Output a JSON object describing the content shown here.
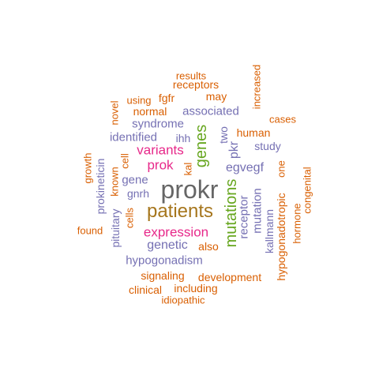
{
  "colors": {
    "orange": "#d95f02",
    "purple": "#7570b3",
    "magenta": "#e7298a",
    "green": "#66a61e",
    "olive": "#a6761d",
    "gray": "#666666"
  },
  "words": [
    {
      "text": "prokr",
      "color": "gray"
    },
    {
      "text": "patients",
      "color": "olive"
    },
    {
      "text": "mutations",
      "color": "green"
    },
    {
      "text": "genes",
      "color": "green"
    },
    {
      "text": "variants",
      "color": "magenta"
    },
    {
      "text": "expression",
      "color": "magenta"
    },
    {
      "text": "prok",
      "color": "magenta"
    },
    {
      "text": "egvegf",
      "color": "purple"
    },
    {
      "text": "pkr",
      "color": "purple"
    },
    {
      "text": "genetic",
      "color": "purple"
    },
    {
      "text": "hypogonadism",
      "color": "purple"
    },
    {
      "text": "syndrome",
      "color": "purple"
    },
    {
      "text": "identified",
      "color": "purple"
    },
    {
      "text": "associated",
      "color": "purple"
    },
    {
      "text": "gene",
      "color": "purple"
    },
    {
      "text": "receptor",
      "color": "purple"
    },
    {
      "text": "mutation",
      "color": "purple"
    },
    {
      "text": "kallmann",
      "color": "purple"
    },
    {
      "text": "prokineticin",
      "color": "purple"
    },
    {
      "text": "study",
      "color": "purple"
    },
    {
      "text": "ihh",
      "color": "purple"
    },
    {
      "text": "gnrh",
      "color": "purple"
    },
    {
      "text": "two",
      "color": "purple"
    },
    {
      "text": "pituitary",
      "color": "purple"
    },
    {
      "text": "hypogonadotropic",
      "color": "orange"
    },
    {
      "text": "one",
      "color": "orange"
    },
    {
      "text": "congenital",
      "color": "orange"
    },
    {
      "text": "hormone",
      "color": "orange"
    },
    {
      "text": "development",
      "color": "orange"
    },
    {
      "text": "signaling",
      "color": "orange"
    },
    {
      "text": "human",
      "color": "orange"
    },
    {
      "text": "receptors",
      "color": "orange"
    },
    {
      "text": "results",
      "color": "orange"
    },
    {
      "text": "may",
      "color": "orange"
    },
    {
      "text": "fgfr",
      "color": "orange"
    },
    {
      "text": "using",
      "color": "orange"
    },
    {
      "text": "normal",
      "color": "orange"
    },
    {
      "text": "novel",
      "color": "orange"
    },
    {
      "text": "increased",
      "color": "orange"
    },
    {
      "text": "cases",
      "color": "orange"
    },
    {
      "text": "cell",
      "color": "orange"
    },
    {
      "text": "kal",
      "color": "orange"
    },
    {
      "text": "known",
      "color": "orange"
    },
    {
      "text": "growth",
      "color": "orange"
    },
    {
      "text": "cells",
      "color": "orange"
    },
    {
      "text": "found",
      "color": "orange"
    },
    {
      "text": "also",
      "color": "orange"
    },
    {
      "text": "clinical",
      "color": "orange"
    },
    {
      "text": "including",
      "color": "orange"
    },
    {
      "text": "idiopathic",
      "color": "orange"
    }
  ]
}
